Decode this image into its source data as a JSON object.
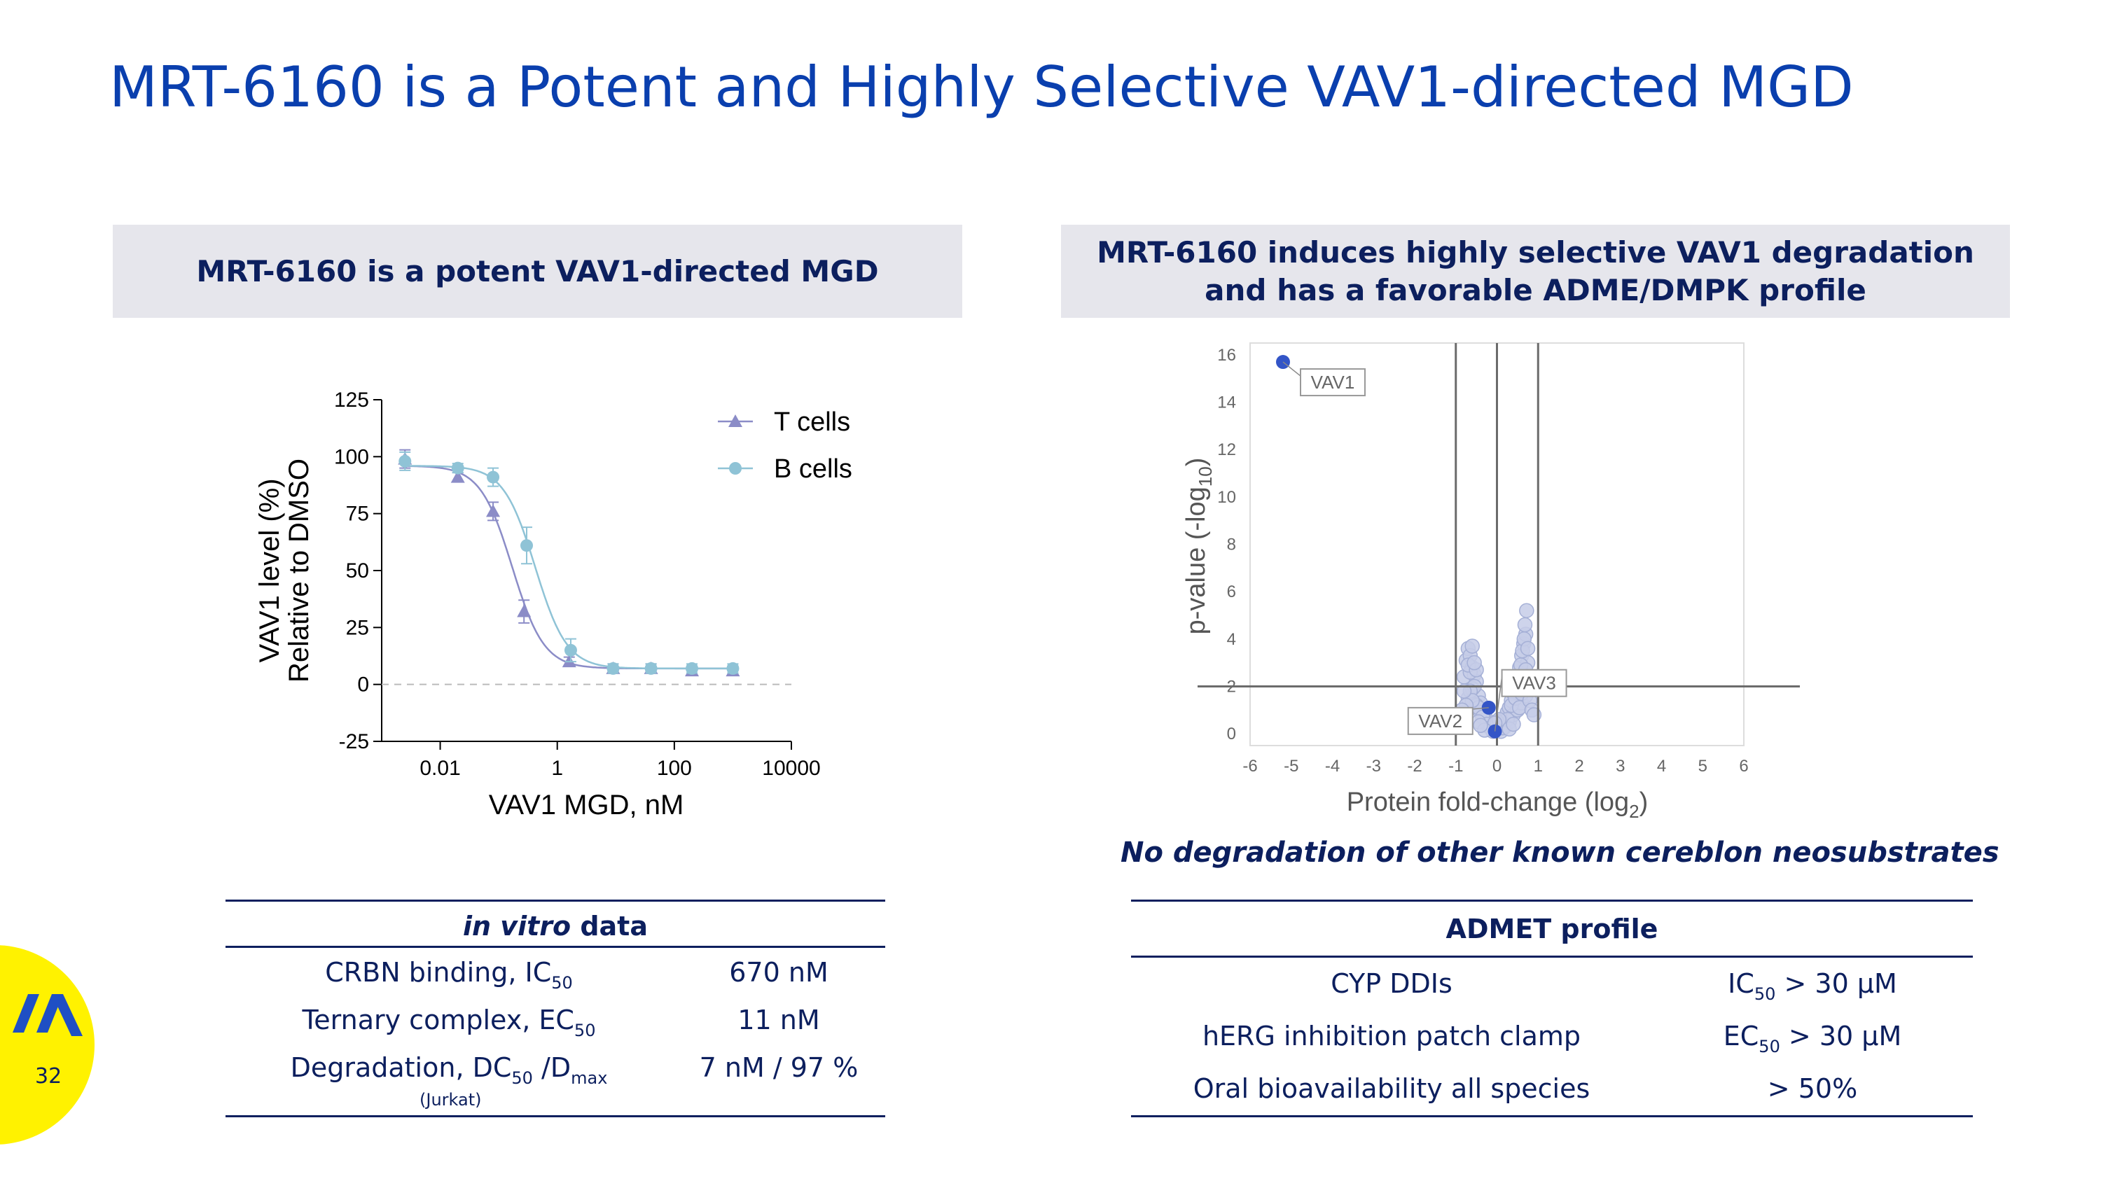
{
  "slide": {
    "title": "MRT-6160 is a Potent and Highly Selective VAV1-directed MGD",
    "page_number": "32"
  },
  "left_panel": {
    "header": "MRT-6160 is a potent VAV1-directed MGD"
  },
  "right_panel": {
    "header_line1": "MRT-6160 induces highly selective VAV1 degradation",
    "header_line2": "and has a favorable ADME/DMPK profile",
    "note": "No degradation of other known cereblon neosubstrates"
  },
  "colors": {
    "title": "#0a3fae",
    "navy": "#0c1f5e",
    "header_bg": "#e6e6ec",
    "t_cells": "#8b8cc7",
    "b_cells": "#8fc3d6",
    "volcano_point": "#c5cde8",
    "highlight": "#3355c7",
    "badge": "#fff200"
  },
  "chart_data": [
    {
      "type": "line",
      "xscale": "log",
      "xlabel": "VAV1 MGD, nM",
      "ylabel_line1": "VAV1 level (%)",
      "ylabel_line2": "Relative to DMSO",
      "xticks": [
        0.01,
        1,
        100,
        10000
      ],
      "xtick_labels": [
        "0.01",
        "1",
        "100",
        "10000"
      ],
      "yticks": [
        -25,
        0,
        25,
        50,
        75,
        100,
        125
      ],
      "ytick_labels": [
        "-25",
        "0",
        "25",
        "50",
        "75",
        "100",
        "125"
      ],
      "xlim": [
        0.001,
        10000
      ],
      "ylim": [
        -25,
        125
      ],
      "legend": "top-right",
      "series": [
        {
          "name": "T cells",
          "marker": "triangle",
          "x": [
            0.0025,
            0.02,
            0.08,
            0.27,
            1.6,
            9,
            40,
            200,
            1000
          ],
          "y": [
            99,
            91,
            76,
            32,
            10,
            7,
            7,
            6,
            6
          ],
          "err": [
            4,
            2,
            4,
            5,
            2,
            2,
            2,
            2,
            2
          ],
          "fit": {
            "top": 96,
            "bottom": 7,
            "ec50": 0.17,
            "hill": 1.6
          }
        },
        {
          "name": "B cells",
          "marker": "circle",
          "x": [
            0.0025,
            0.02,
            0.08,
            0.3,
            1.7,
            9,
            40,
            200,
            1000
          ],
          "y": [
            98,
            95,
            91,
            61,
            15,
            7,
            7,
            7,
            7
          ],
          "err": [
            4,
            2,
            4,
            8,
            5,
            2,
            2,
            2,
            2
          ],
          "fit": {
            "top": 96,
            "bottom": 7,
            "ec50": 0.42,
            "hill": 1.6
          }
        }
      ]
    },
    {
      "type": "scatter",
      "xlabel": "Protein fold-change (log",
      "xlabel_sub": "2",
      "ylabel": "p-value (-log",
      "ylabel_sub": "10",
      "xticks": [
        -6,
        -5,
        -4,
        -3,
        -2,
        -1,
        0,
        1,
        2,
        3,
        4,
        5,
        6
      ],
      "xtick_labels": [
        "-6",
        "-5",
        "-4",
        "-3",
        "-2",
        "-1",
        "0",
        "1",
        "2",
        "3",
        "4",
        "5",
        "6"
      ],
      "yticks": [
        0,
        2,
        4,
        6,
        8,
        10,
        12,
        14,
        16
      ],
      "ytick_labels": [
        "0",
        "2",
        "4",
        "6",
        "8",
        "10",
        "12",
        "14",
        "16"
      ],
      "xlim": [
        -6,
        6
      ],
      "ylim": [
        -0.5,
        16.5
      ],
      "thresholds": {
        "vertical": [
          -1,
          0,
          1
        ],
        "horizontal": 2
      },
      "labeled_points": [
        {
          "label": "VAV1",
          "x": -5.2,
          "y": 15.7
        },
        {
          "label": "VAV2",
          "x": -0.2,
          "y": 1.1
        },
        {
          "label": "VAV3",
          "x": -0.05,
          "y": 0.1
        }
      ],
      "background_points": {
        "x": [
          -0.8,
          -0.75,
          -0.7,
          -0.65,
          -0.6,
          -0.55,
          -0.5,
          -0.45,
          -0.4,
          -0.35,
          -0.3,
          -0.25,
          -0.2,
          -0.15,
          -0.1,
          -0.05,
          0.05,
          0.1,
          0.15,
          0.2,
          0.25,
          0.3,
          0.35,
          0.4,
          0.45,
          0.5,
          0.55,
          0.6,
          0.65,
          0.7,
          0.75,
          0.8,
          -0.7,
          -0.6,
          -0.5,
          -0.4,
          -0.3,
          -0.2,
          -0.1,
          0.1,
          0.2,
          0.3,
          0.4,
          0.5,
          0.6,
          0.7,
          -0.65,
          -0.55,
          -0.45,
          -0.35,
          -0.25,
          -0.15,
          0.15,
          0.25,
          0.35,
          0.45,
          0.55,
          0.65,
          0.68,
          0.72,
          0.62,
          0.58,
          0.66,
          0.75,
          0.7,
          0.64,
          0.6,
          0.55,
          -0.6,
          -0.7,
          -0.65,
          -0.5,
          -0.55,
          -0.6,
          -0.45,
          -0.8,
          -0.75,
          0.8,
          0.85,
          0.9,
          -0.85,
          -0.9,
          0.0,
          0.05,
          -0.05,
          0.3,
          -0.3,
          0.4,
          -0.4
        ],
        "y": [
          2.4,
          3.1,
          3.6,
          3.3,
          2.8,
          2.5,
          2.2,
          1.6,
          1.3,
          1.0,
          0.8,
          0.6,
          0.4,
          0.3,
          0.2,
          0.15,
          0.2,
          0.35,
          0.5,
          0.7,
          0.9,
          1.1,
          1.4,
          1.7,
          2.0,
          2.4,
          2.8,
          3.3,
          3.8,
          4.2,
          3.0,
          2.2,
          1.5,
          1.9,
          1.2,
          0.9,
          0.6,
          0.3,
          0.1,
          0.1,
          0.3,
          0.5,
          0.8,
          1.0,
          1.3,
          1.6,
          2.6,
          2.0,
          1.1,
          0.7,
          0.4,
          0.25,
          0.25,
          0.6,
          1.2,
          1.5,
          1.8,
          2.5,
          4.6,
          5.2,
          3.5,
          2.9,
          4.0,
          3.6,
          2.7,
          2.1,
          1.7,
          1.1,
          3.7,
          2.9,
          1.8,
          2.7,
          3.0,
          1.4,
          0.5,
          1.8,
          1.2,
          1.4,
          1.0,
          0.8,
          1.0,
          0.7,
          0.5,
          0.6,
          0.45,
          0.2,
          0.15,
          0.4,
          0.35
        ]
      }
    }
  ],
  "invitro_table": {
    "title_italic": "in vitro",
    "title_rest": " data",
    "rows": [
      {
        "label": "CRBN binding, IC",
        "label_sub": "50",
        "value": "670 nM"
      },
      {
        "label": "Ternary complex, EC",
        "label_sub": "50",
        "value": "11 nM"
      },
      {
        "label": "Degradation, DC",
        "label_sub": "50",
        "label_mid": " /D",
        "label_sub2": "max",
        "value": "7 nM / 97 %",
        "footnote": "(Jurkat)"
      }
    ]
  },
  "admet_table": {
    "title": "ADMET profile",
    "rows": [
      {
        "label": "CYP DDIs",
        "value_pre": "IC",
        "value_sub": "50",
        "value_post": " > 30 µM"
      },
      {
        "label": "hERG inhibition patch clamp",
        "value_pre": "EC",
        "value_sub": "50",
        "value_post": " > 30 µM"
      },
      {
        "label": "Oral bioavailability all species",
        "value_pre": "",
        "value_sub": "",
        "value_post": "> 50%"
      }
    ]
  }
}
